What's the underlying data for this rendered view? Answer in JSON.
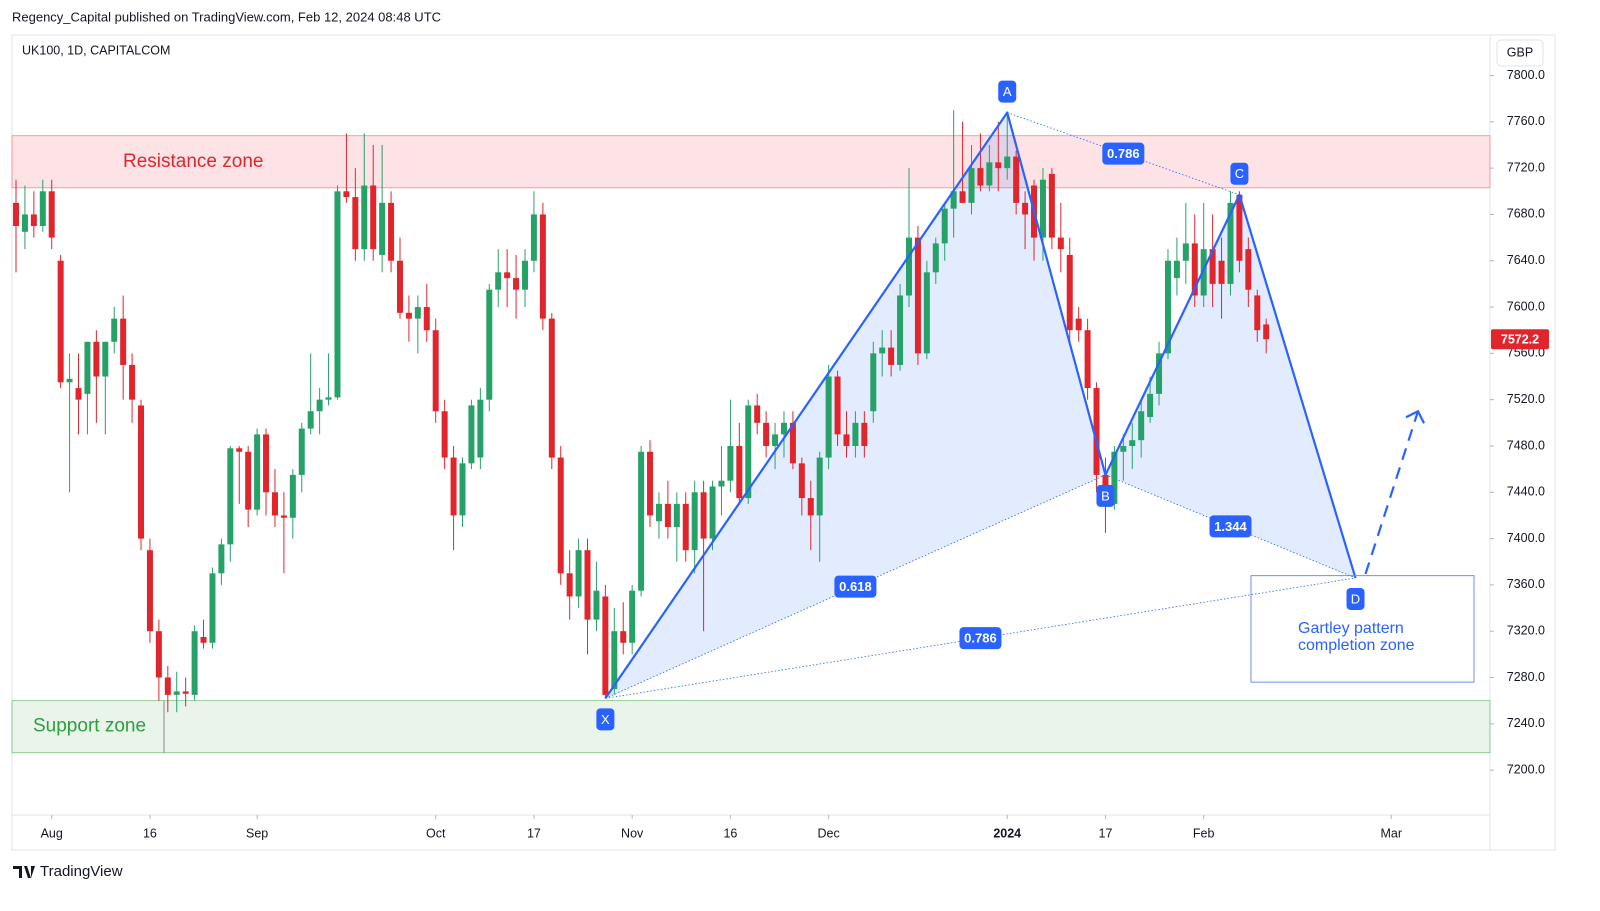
{
  "header": {
    "publisher": "Regency_Capital published on TradingView.com, Feb 12, 2024 08:48 UTC",
    "symbol": "UK100, 1D, CAPITALCOM",
    "currency": "GBP",
    "brand": "TradingView"
  },
  "chart_data": {
    "type": "candlestick",
    "up_color": "#26a269",
    "down_color": "#e0252d",
    "pattern_color": "#2962ff",
    "ylim": [
      7131,
      7835
    ],
    "yticks": [
      {
        "value": 7200,
        "label": "7200.0"
      },
      {
        "value": 7240,
        "label": "7240.0"
      },
      {
        "value": 7280,
        "label": "7280.0"
      },
      {
        "value": 7320,
        "label": "7320.0"
      },
      {
        "value": 7360,
        "label": "7360.0"
      },
      {
        "value": 7400,
        "label": "7400.0"
      },
      {
        "value": 7440,
        "label": "7440.0"
      },
      {
        "value": 7480,
        "label": "7480.0"
      },
      {
        "value": 7520,
        "label": "7520.0"
      },
      {
        "value": 7560,
        "label": "7560.0"
      },
      {
        "value": 7600,
        "label": "7600.0"
      },
      {
        "value": 7640,
        "label": "7640.0"
      },
      {
        "value": 7680,
        "label": "7680.0"
      },
      {
        "value": 7720,
        "label": "7720.0"
      },
      {
        "value": 7760,
        "label": "7760.0"
      },
      {
        "value": 7800,
        "label": "7800.0"
      }
    ],
    "xticks": [
      {
        "value": 4,
        "label": "Aug"
      },
      {
        "value": 15,
        "label": "16"
      },
      {
        "value": 27,
        "label": "Sep"
      },
      {
        "value": 47,
        "label": "Oct"
      },
      {
        "value": 58,
        "label": "17"
      },
      {
        "value": 69,
        "label": "Nov"
      },
      {
        "value": 80,
        "label": "16"
      },
      {
        "value": 91,
        "label": "Dec"
      },
      {
        "value": 111,
        "label": "2024"
      },
      {
        "value": 122,
        "label": "17"
      },
      {
        "value": 133,
        "label": "Feb"
      },
      {
        "value": 154,
        "label": "Mar"
      }
    ],
    "ohlc": [
      [
        7690,
        7710,
        7630,
        7670
      ],
      [
        7665,
        7705,
        7650,
        7680
      ],
      [
        7680,
        7700,
        7660,
        7670
      ],
      [
        7670,
        7710,
        7665,
        7700
      ],
      [
        7700,
        7710,
        7650,
        7660
      ],
      [
        7640,
        7645,
        7530,
        7535
      ],
      [
        7535,
        7560,
        7440,
        7538
      ],
      [
        7530,
        7560,
        7490,
        7520
      ],
      [
        7525,
        7570,
        7490,
        7570
      ],
      [
        7570,
        7580,
        7500,
        7540
      ],
      [
        7540,
        7570,
        7490,
        7570
      ],
      [
        7570,
        7600,
        7560,
        7590
      ],
      [
        7590,
        7610,
        7520,
        7550
      ],
      [
        7550,
        7560,
        7500,
        7520
      ],
      [
        7515,
        7520,
        7390,
        7400
      ],
      [
        7390,
        7400,
        7310,
        7320
      ],
      [
        7320,
        7330,
        7260,
        7280
      ],
      [
        7280,
        7290,
        7250,
        7265
      ],
      [
        7265,
        7285,
        7250,
        7268
      ],
      [
        7268,
        7280,
        7255,
        7266
      ],
      [
        7265,
        7325,
        7260,
        7320
      ],
      [
        7315,
        7330,
        7305,
        7310
      ],
      [
        7310,
        7375,
        7305,
        7370
      ],
      [
        7370,
        7400,
        7360,
        7395
      ],
      [
        7395,
        7480,
        7380,
        7478
      ],
      [
        7478,
        7480,
        7430,
        7475
      ],
      [
        7475,
        7480,
        7410,
        7425
      ],
      [
        7425,
        7495,
        7420,
        7490
      ],
      [
        7490,
        7495,
        7420,
        7440
      ],
      [
        7440,
        7460,
        7410,
        7420
      ],
      [
        7420,
        7440,
        7370,
        7418
      ],
      [
        7418,
        7460,
        7400,
        7455
      ],
      [
        7455,
        7500,
        7440,
        7495
      ],
      [
        7495,
        7560,
        7490,
        7510
      ],
      [
        7510,
        7530,
        7490,
        7520
      ],
      [
        7520,
        7560,
        7515,
        7522
      ],
      [
        7522,
        7705,
        7520,
        7700
      ],
      [
        7700,
        7750,
        7690,
        7695
      ],
      [
        7695,
        7720,
        7640,
        7650
      ],
      [
        7650,
        7750,
        7640,
        7705
      ],
      [
        7705,
        7740,
        7640,
        7650
      ],
      [
        7645,
        7740,
        7630,
        7690
      ],
      [
        7690,
        7700,
        7630,
        7640
      ],
      [
        7640,
        7660,
        7590,
        7595
      ],
      [
        7595,
        7610,
        7570,
        7590
      ],
      [
        7590,
        7610,
        7560,
        7600
      ],
      [
        7600,
        7620,
        7570,
        7580
      ],
      [
        7580,
        7590,
        7500,
        7510
      ],
      [
        7510,
        7520,
        7460,
        7470
      ],
      [
        7470,
        7480,
        7390,
        7420
      ],
      [
        7420,
        7470,
        7410,
        7465
      ],
      [
        7465,
        7520,
        7460,
        7515
      ],
      [
        7470,
        7530,
        7460,
        7520
      ],
      [
        7520,
        7620,
        7510,
        7615
      ],
      [
        7615,
        7650,
        7600,
        7630
      ],
      [
        7630,
        7650,
        7600,
        7625
      ],
      [
        7625,
        7645,
        7590,
        7615
      ],
      [
        7615,
        7650,
        7600,
        7640
      ],
      [
        7640,
        7700,
        7630,
        7680
      ],
      [
        7680,
        7690,
        7580,
        7590
      ],
      [
        7590,
        7595,
        7460,
        7470
      ],
      [
        7470,
        7480,
        7360,
        7370
      ],
      [
        7370,
        7390,
        7330,
        7350
      ],
      [
        7350,
        7400,
        7340,
        7390
      ],
      [
        7390,
        7400,
        7300,
        7330
      ],
      [
        7330,
        7380,
        7320,
        7355
      ],
      [
        7350,
        7360,
        7262,
        7265
      ],
      [
        7270,
        7340,
        7265,
        7320
      ],
      [
        7320,
        7345,
        7300,
        7310
      ],
      [
        7310,
        7360,
        7300,
        7355
      ],
      [
        7355,
        7480,
        7350,
        7475
      ],
      [
        7475,
        7485,
        7410,
        7420
      ],
      [
        7415,
        7440,
        7400,
        7430
      ],
      [
        7430,
        7450,
        7400,
        7410
      ],
      [
        7410,
        7440,
        7380,
        7430
      ],
      [
        7430,
        7440,
        7380,
        7390
      ],
      [
        7390,
        7450,
        7370,
        7440
      ],
      [
        7440,
        7450,
        7320,
        7400
      ],
      [
        7400,
        7450,
        7390,
        7445
      ],
      [
        7445,
        7480,
        7420,
        7450
      ],
      [
        7450,
        7520,
        7440,
        7480
      ],
      [
        7480,
        7500,
        7430,
        7435
      ],
      [
        7435,
        7520,
        7430,
        7515
      ],
      [
        7515,
        7525,
        7490,
        7500
      ],
      [
        7500,
        7510,
        7470,
        7480
      ],
      [
        7480,
        7500,
        7460,
        7490
      ],
      [
        7490,
        7510,
        7470,
        7500
      ],
      [
        7500,
        7510,
        7460,
        7465
      ],
      [
        7465,
        7470,
        7420,
        7435
      ],
      [
        7435,
        7450,
        7390,
        7420
      ],
      [
        7420,
        7475,
        7380,
        7470
      ],
      [
        7470,
        7550,
        7460,
        7540
      ],
      [
        7540,
        7545,
        7480,
        7490
      ],
      [
        7490,
        7510,
        7470,
        7480
      ],
      [
        7480,
        7510,
        7470,
        7500
      ],
      [
        7500,
        7510,
        7470,
        7480
      ],
      [
        7510,
        7570,
        7500,
        7560
      ],
      [
        7560,
        7580,
        7540,
        7565
      ],
      [
        7565,
        7580,
        7540,
        7550
      ],
      [
        7550,
        7620,
        7545,
        7610
      ],
      [
        7610,
        7720,
        7600,
        7660
      ],
      [
        7660,
        7670,
        7550,
        7560
      ],
      [
        7560,
        7640,
        7555,
        7630
      ],
      [
        7630,
        7660,
        7620,
        7655
      ],
      [
        7655,
        7690,
        7640,
        7685
      ],
      [
        7685,
        7770,
        7660,
        7700
      ],
      [
        7700,
        7760,
        7690,
        7690
      ],
      [
        7690,
        7740,
        7680,
        7720
      ],
      [
        7720,
        7750,
        7700,
        7705
      ],
      [
        7705,
        7740,
        7700,
        7725
      ],
      [
        7725,
        7760,
        7700,
        7720
      ],
      [
        7720,
        7768,
        7710,
        7730
      ],
      [
        7730,
        7735,
        7680,
        7690
      ],
      [
        7690,
        7700,
        7650,
        7680
      ],
      [
        7705,
        7710,
        7640,
        7660
      ],
      [
        7660,
        7720,
        7640,
        7710
      ],
      [
        7715,
        7720,
        7650,
        7660
      ],
      [
        7660,
        7690,
        7630,
        7650
      ],
      [
        7645,
        7660,
        7570,
        7580
      ],
      [
        7590,
        7600,
        7570,
        7580
      ],
      [
        7580,
        7590,
        7520,
        7530
      ],
      [
        7530,
        7535,
        7440,
        7455
      ],
      [
        7455,
        7470,
        7405,
        7430
      ],
      [
        7430,
        7480,
        7425,
        7475
      ],
      [
        7475,
        7490,
        7450,
        7480
      ],
      [
        7480,
        7500,
        7460,
        7485
      ],
      [
        7485,
        7520,
        7470,
        7510
      ],
      [
        7505,
        7540,
        7500,
        7525
      ],
      [
        7525,
        7570,
        7515,
        7560
      ],
      [
        7560,
        7650,
        7555,
        7640
      ],
      [
        7625,
        7660,
        7610,
        7640
      ],
      [
        7640,
        7690,
        7620,
        7655
      ],
      [
        7655,
        7680,
        7600,
        7610
      ],
      [
        7610,
        7690,
        7600,
        7650
      ],
      [
        7650,
        7680,
        7600,
        7620
      ],
      [
        7640,
        7660,
        7590,
        7620
      ],
      [
        7620,
        7700,
        7610,
        7690
      ],
      [
        7697,
        7700,
        7630,
        7640
      ],
      [
        7650,
        7660,
        7600,
        7615
      ],
      [
        7610,
        7615,
        7570,
        7580
      ],
      [
        7585,
        7590,
        7560,
        7572.2
      ]
    ],
    "last_price": 7572.2,
    "pattern": [
      {
        "label": "X",
        "index": 66,
        "value": 7262
      },
      {
        "label": "A",
        "index": 111,
        "value": 7768
      },
      {
        "label": "B",
        "index": 122,
        "value": 7455
      },
      {
        "label": "C",
        "index": 137,
        "value": 7697
      },
      {
        "label": "D",
        "index": 150,
        "value": 7366
      }
    ],
    "ratios": [
      "0.786",
      "0.618",
      "1.344",
      "0.786"
    ],
    "projection": 7510,
    "resistance": {
      "label": "Resistance zone",
      "range": [
        7703,
        7748
      ]
    },
    "support": {
      "label": "Support zone",
      "range": [
        7215,
        7260
      ]
    },
    "completion": {
      "lines": [
        "Gartley pattern",
        "completion zone"
      ],
      "range": [
        7276,
        7368
      ]
    }
  }
}
